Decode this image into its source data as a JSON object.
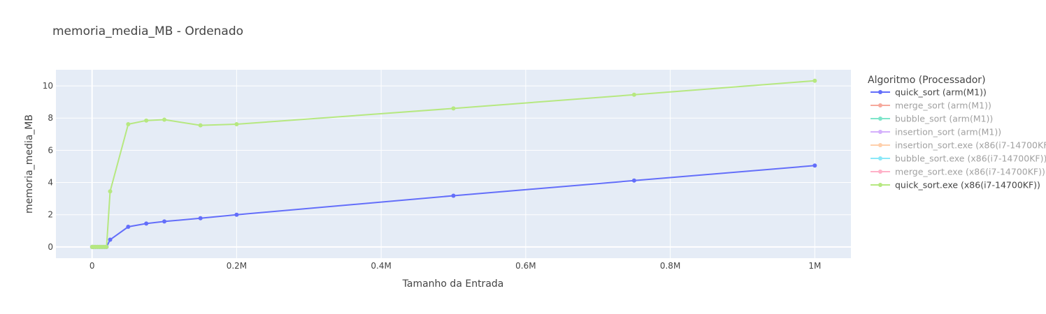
{
  "chart_data": {
    "type": "line",
    "title": "memoria_media_MB - Ordenado",
    "xlabel": "Tamanho da Entrada",
    "ylabel": "memoria_media_MB",
    "xlim": [
      -50000,
      1050000
    ],
    "ylim": [
      -0.7,
      11
    ],
    "x_ticks": [
      0,
      200000,
      400000,
      600000,
      800000,
      1000000
    ],
    "x_tick_labels": [
      "0",
      "0.2M",
      "0.4M",
      "0.6M",
      "0.8M",
      "1M"
    ],
    "y_ticks": [
      0,
      2,
      4,
      6,
      8,
      10
    ],
    "y_tick_labels": [
      "0",
      "2",
      "4",
      "6",
      "8",
      "10"
    ],
    "grid": true,
    "legend_title": "Algoritmo (Processador)",
    "legend_position": "right",
    "series": [
      {
        "name": "quick_sort (arm(M1))",
        "color": "#636efa",
        "visible": true,
        "x": [
          100,
          500,
          1000,
          2500,
          5000,
          7500,
          10000,
          12500,
          15000,
          17500,
          20000,
          25000,
          50000,
          75000,
          100000,
          150000,
          200000,
          500000,
          750000,
          1000000
        ],
        "y": [
          0,
          0,
          0,
          0,
          0,
          0,
          0,
          0,
          0,
          0,
          0,
          0.45,
          1.25,
          1.45,
          1.58,
          1.78,
          2.0,
          3.18,
          4.12,
          5.05
        ]
      },
      {
        "name": "merge_sort (arm(M1))",
        "color": "#ef553b",
        "visible": false,
        "x": [],
        "y": []
      },
      {
        "name": "bubble_sort (arm(M1))",
        "color": "#00cc96",
        "visible": false,
        "x": [],
        "y": []
      },
      {
        "name": "insertion_sort (arm(M1))",
        "color": "#ab63fa",
        "visible": false,
        "x": [],
        "y": []
      },
      {
        "name": "insertion_sort.exe (x86(i7-14700KF))",
        "color": "#ffa15a",
        "visible": false,
        "x": [],
        "y": []
      },
      {
        "name": "bubble_sort.exe (x86(i7-14700KF))",
        "color": "#19d3f3",
        "visible": false,
        "x": [],
        "y": []
      },
      {
        "name": "merge_sort.exe (x86(i7-14700KF))",
        "color": "#ff6692",
        "visible": false,
        "x": [],
        "y": []
      },
      {
        "name": "quick_sort.exe (x86(i7-14700KF))",
        "color": "#b6e880",
        "visible": true,
        "x": [
          100,
          500,
          1000,
          2500,
          5000,
          7500,
          10000,
          12500,
          15000,
          17500,
          20000,
          25000,
          50000,
          75000,
          100000,
          150000,
          200000,
          500000,
          750000,
          1000000
        ],
        "y": [
          0,
          0,
          0,
          0,
          0,
          0,
          0,
          0,
          0,
          0,
          0,
          3.45,
          7.62,
          7.85,
          7.9,
          7.55,
          7.62,
          8.6,
          9.45,
          10.32
        ]
      }
    ]
  }
}
